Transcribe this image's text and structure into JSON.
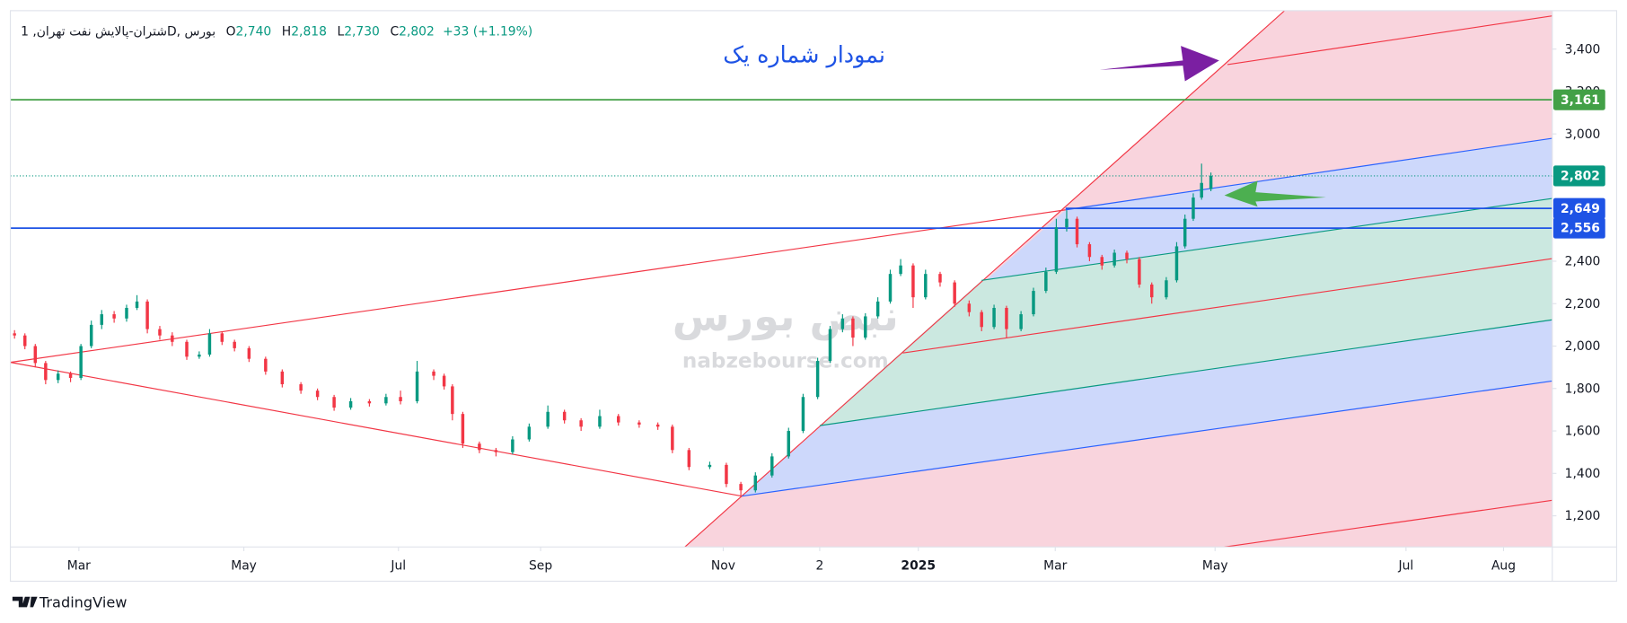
{
  "chart_data": {
    "type": "candlestick",
    "title": "نمودار شماره یک",
    "header": {
      "symbol": "شتران-پالایش نفت تهران, 1D, بورس",
      "values": [
        {
          "key": "O",
          "value": "2,740"
        },
        {
          "key": "H",
          "value": "2,818"
        },
        {
          "key": "L",
          "value": "2,730"
        },
        {
          "key": "C",
          "value": "2,802"
        }
      ],
      "change": "+33 (+1.19%)"
    },
    "watermark": {
      "brand": "نبض بورس",
      "site": "nabzebourse.com"
    },
    "footer": "TradingView",
    "up_color": "#089981",
    "down_color": "#f23645",
    "xlim": [
      0,
      371.5
    ],
    "ylim": [
      1053,
      3581
    ],
    "xticks": [
      {
        "value": 16.5,
        "label": "Mar"
      },
      {
        "value": 56.25,
        "label": "May"
      },
      {
        "value": 93.5,
        "label": "Jul"
      },
      {
        "value": 127.75,
        "label": "Sep"
      },
      {
        "value": 171.75,
        "label": "Nov"
      },
      {
        "value": 195,
        "label": "2"
      },
      {
        "value": 218.75,
        "label": "2025"
      },
      {
        "value": 251.75,
        "label": "Mar"
      },
      {
        "value": 290.25,
        "label": "May"
      },
      {
        "value": 336.25,
        "label": "Jul"
      },
      {
        "value": 359.75,
        "label": "Aug"
      }
    ],
    "yticks": [
      {
        "value": 1200,
        "label": "1,200"
      },
      {
        "value": 1400,
        "label": "1,400"
      },
      {
        "value": 1600,
        "label": "1,600"
      },
      {
        "value": 1800,
        "label": "1,800"
      },
      {
        "value": 2000,
        "label": "2,000"
      },
      {
        "value": 2200,
        "label": "2,200"
      },
      {
        "value": 2400,
        "label": "2,400"
      },
      {
        "value": 2600,
        "label": "2,600"
      },
      {
        "value": 2800,
        "label": "2,800"
      },
      {
        "value": 3000,
        "label": "3,000"
      },
      {
        "value": 3200,
        "label": "3,200"
      },
      {
        "value": 3400,
        "label": "3,400"
      }
    ],
    "price_lines": [
      {
        "value": 3161,
        "label": "3,161",
        "color": "#43a047",
        "style": "solid"
      },
      {
        "value": 2802,
        "label": "2,802",
        "color": "#089981",
        "style": "dotted"
      },
      {
        "value": 2649,
        "label": "2,649",
        "color": "#1e53e5",
        "style": "solid"
      },
      {
        "value": 2556,
        "label": "2,556",
        "color": "#1e53e5",
        "style": "solid"
      }
    ],
    "x": [
      1,
      3.5,
      6,
      8.5,
      11.5,
      14.5,
      17,
      19.5,
      22,
      25,
      28,
      30.5,
      33,
      36,
      39,
      42.5,
      45.5,
      48,
      51,
      54,
      57.5,
      61.5,
      65.5,
      70,
      74,
      78,
      82,
      86.5,
      90.5,
      94,
      98,
      102,
      104.5,
      106.5,
      109,
      113,
      117,
      121,
      125,
      129.5,
      133.5,
      137.5,
      142,
      146.5,
      151.5,
      156,
      159.5,
      163.5,
      168.5,
      172.5,
      176,
      179.5,
      183.5,
      187.5,
      191,
      194.5,
      197.5,
      200.5,
      203,
      206,
      209,
      212,
      214.5,
      217.5,
      220.5,
      224,
      227.5,
      231,
      234,
      237,
      240,
      243.5,
      246.5,
      249.5,
      252,
      254.5,
      257,
      260,
      263,
      266,
      269,
      272,
      275,
      278.5,
      281,
      283,
      285,
      287,
      289.25
    ],
    "open": [
      2060,
      2050,
      2000,
      1920,
      1840,
      1870,
      1850,
      2000,
      2100,
      2150,
      2130,
      2180,
      2210,
      2080,
      2050,
      2020,
      1950,
      1960,
      2060,
      2020,
      1990,
      1940,
      1880,
      1820,
      1790,
      1760,
      1710,
      1740,
      1730,
      1760,
      1740,
      1880,
      1860,
      1810,
      1680,
      1540,
      1510,
      1500,
      1560,
      1620,
      1690,
      1650,
      1620,
      1670,
      1640,
      1630,
      1620,
      1510,
      1430,
      1440,
      1350,
      1320,
      1390,
      1480,
      1600,
      1760,
      1930,
      2080,
      2130,
      2040,
      2140,
      2210,
      2340,
      2380,
      2230,
      2340,
      2300,
      2200,
      2160,
      2090,
      2180,
      2080,
      2150,
      2260,
      2350,
      2560,
      2600,
      2480,
      2420,
      2380,
      2440,
      2410,
      2290,
      2230,
      2310,
      2470,
      2600,
      2700,
      2740
    ],
    "high": [
      2075,
      2060,
      2010,
      1930,
      1885,
      1880,
      2010,
      2120,
      2170,
      2165,
      2195,
      2240,
      2220,
      2095,
      2065,
      2030,
      1975,
      2080,
      2070,
      2030,
      2000,
      1950,
      1890,
      1830,
      1800,
      1770,
      1755,
      1750,
      1775,
      1790,
      1930,
      1890,
      1870,
      1820,
      1690,
      1550,
      1520,
      1575,
      1635,
      1720,
      1700,
      1660,
      1700,
      1680,
      1650,
      1640,
      1630,
      1520,
      1455,
      1450,
      1360,
      1405,
      1495,
      1615,
      1775,
      1945,
      2095,
      2150,
      2140,
      2155,
      2230,
      2360,
      2410,
      2390,
      2360,
      2350,
      2310,
      2215,
      2170,
      2195,
      2190,
      2165,
      2275,
      2370,
      2600,
      2640,
      2610,
      2490,
      2430,
      2455,
      2450,
      2420,
      2300,
      2325,
      2490,
      2620,
      2720,
      2860,
      2818
    ],
    "low": [
      2035,
      1985,
      1900,
      1820,
      1825,
      1830,
      1840,
      1990,
      2080,
      2110,
      2115,
      2170,
      2060,
      2030,
      2000,
      1935,
      1940,
      1950,
      2005,
      1975,
      1925,
      1865,
      1805,
      1775,
      1745,
      1695,
      1700,
      1715,
      1720,
      1725,
      1730,
      1840,
      1795,
      1650,
      1520,
      1495,
      1480,
      1490,
      1550,
      1610,
      1635,
      1600,
      1610,
      1625,
      1615,
      1605,
      1495,
      1415,
      1420,
      1335,
      1290,
      1310,
      1380,
      1470,
      1590,
      1750,
      1920,
      2065,
      2000,
      2030,
      2130,
      2200,
      2330,
      2180,
      2220,
      2280,
      2185,
      2140,
      2070,
      2080,
      2040,
      2070,
      2140,
      2250,
      2340,
      2540,
      2465,
      2400,
      2360,
      2370,
      2390,
      2275,
      2200,
      2220,
      2300,
      2460,
      2590,
      2690,
      2730
    ],
    "close": [
      2050,
      2000,
      1920,
      1840,
      1870,
      1850,
      2000,
      2100,
      2150,
      2130,
      2180,
      2210,
      2080,
      2050,
      2020,
      1950,
      1960,
      2060,
      2020,
      1990,
      1940,
      1880,
      1820,
      1790,
      1760,
      1710,
      1740,
      1730,
      1760,
      1740,
      1880,
      1860,
      1810,
      1680,
      1540,
      1510,
      1500,
      1560,
      1620,
      1690,
      1650,
      1620,
      1670,
      1640,
      1630,
      1620,
      1510,
      1430,
      1440,
      1350,
      1320,
      1390,
      1480,
      1600,
      1760,
      1930,
      2080,
      2130,
      2040,
      2140,
      2210,
      2340,
      2380,
      2230,
      2340,
      2300,
      2200,
      2160,
      2090,
      2180,
      2080,
      2150,
      2260,
      2350,
      2560,
      2600,
      2480,
      2420,
      2380,
      2440,
      2410,
      2290,
      2230,
      2310,
      2470,
      2600,
      2700,
      2769,
      2802
    ]
  }
}
